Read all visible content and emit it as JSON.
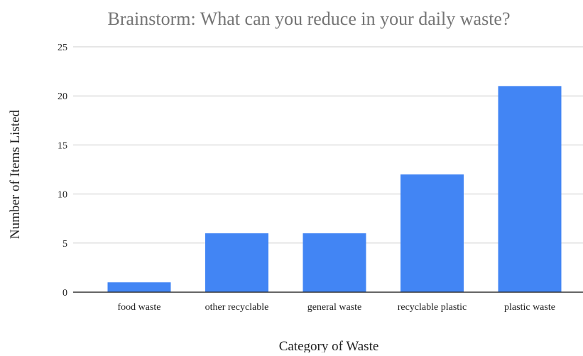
{
  "chart_data": {
    "type": "bar",
    "title": "Brainstorm: What can you reduce in your daily waste?",
    "xlabel": "Category of Waste",
    "ylabel": "Number of Items Listed",
    "categories": [
      "food waste",
      "other recyclable",
      "general waste",
      "recyclable plastic",
      "plastic waste"
    ],
    "values": [
      1,
      6,
      6,
      12,
      21
    ],
    "ylim": [
      0,
      25
    ],
    "yticks": [
      "0",
      "5",
      "10",
      "15",
      "20",
      "25"
    ],
    "grid": true,
    "legend": "none",
    "bar_color": "#4285f4",
    "grid_color": "#cccccc",
    "baseline_color": "#333333",
    "title_color": "#757575"
  }
}
